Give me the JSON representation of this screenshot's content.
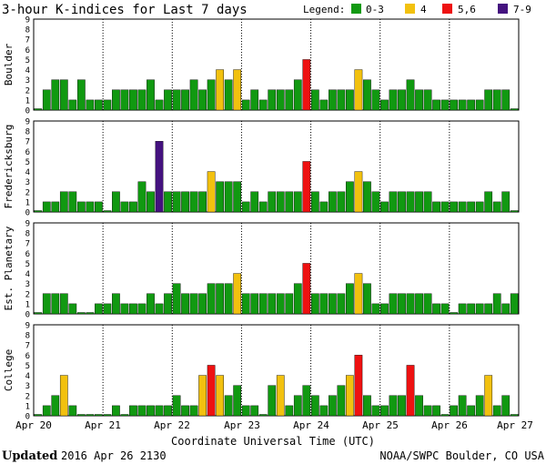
{
  "title": "3-hour K-indices for Last 7 days",
  "legend": {
    "label": "Legend:",
    "items": [
      {
        "label": "0-3",
        "color": "#119911"
      },
      {
        "label": "4",
        "color": "#f2c10f"
      },
      {
        "label": "5,6",
        "color": "#ee1111"
      },
      {
        "label": "7-9",
        "color": "#44127f"
      }
    ]
  },
  "footer": {
    "updated_label": "Updated",
    "updated_value": "2016 Apr 26 2130",
    "credit": "NOAA/SWPC Boulder, CO USA"
  },
  "chart_data": {
    "type": "bar",
    "xlabel": "Coordinate Universal Time (UTC)",
    "x_tick_labels": [
      "Apr 20",
      "Apr 21",
      "Apr 22",
      "Apr 23",
      "Apr 24",
      "Apr 25",
      "Apr 26",
      "Apr 27"
    ],
    "ylim": [
      0,
      9
    ],
    "y_ticks": [
      "0",
      "1",
      "2",
      "3",
      "4",
      "5",
      "6",
      "7",
      "8",
      "9"
    ],
    "bar_interval": "3 hours",
    "panels": [
      {
        "name": "Boulder",
        "values": [
          0,
          2,
          3,
          3,
          1,
          3,
          1,
          1,
          1,
          2,
          2,
          2,
          2,
          3,
          1,
          2,
          2,
          2,
          3,
          2,
          3,
          4,
          3,
          4,
          1,
          2,
          1,
          2,
          2,
          2,
          3,
          5,
          2,
          1,
          2,
          2,
          2,
          4,
          3,
          2,
          1,
          2,
          2,
          3,
          2,
          2,
          1,
          1,
          1,
          1,
          1,
          1,
          2,
          2,
          2,
          0
        ]
      },
      {
        "name": "Fredericksburg",
        "values": [
          0,
          1,
          1,
          2,
          2,
          1,
          1,
          1,
          0,
          2,
          1,
          1,
          3,
          2,
          7,
          2,
          2,
          2,
          2,
          2,
          4,
          3,
          3,
          3,
          1,
          2,
          1,
          2,
          2,
          2,
          2,
          5,
          2,
          1,
          2,
          2,
          3,
          4,
          3,
          2,
          1,
          2,
          2,
          2,
          2,
          2,
          1,
          1,
          1,
          1,
          1,
          1,
          2,
          1,
          2,
          0
        ]
      },
      {
        "name": "Est. Planetary",
        "values": [
          0,
          2,
          2,
          2,
          1,
          0,
          0,
          1,
          1,
          2,
          1,
          1,
          1,
          2,
          1,
          2,
          3,
          2,
          2,
          2,
          3,
          3,
          3,
          4,
          2,
          2,
          2,
          2,
          2,
          2,
          3,
          5,
          2,
          2,
          2,
          2,
          3,
          4,
          3,
          1,
          1,
          2,
          2,
          2,
          2,
          2,
          1,
          1,
          0,
          1,
          1,
          1,
          1,
          2,
          1,
          2
        ]
      },
      {
        "name": "College",
        "values": [
          0,
          1,
          2,
          4,
          1,
          0,
          0,
          0,
          0,
          1,
          0,
          1,
          1,
          1,
          1,
          1,
          2,
          1,
          1,
          4,
          5,
          4,
          2,
          3,
          1,
          1,
          0,
          3,
          4,
          1,
          2,
          3,
          2,
          1,
          2,
          3,
          4,
          6,
          2,
          1,
          1,
          2,
          2,
          5,
          2,
          1,
          1,
          0,
          1,
          2,
          1,
          2,
          4,
          1,
          2,
          0
        ]
      }
    ]
  }
}
